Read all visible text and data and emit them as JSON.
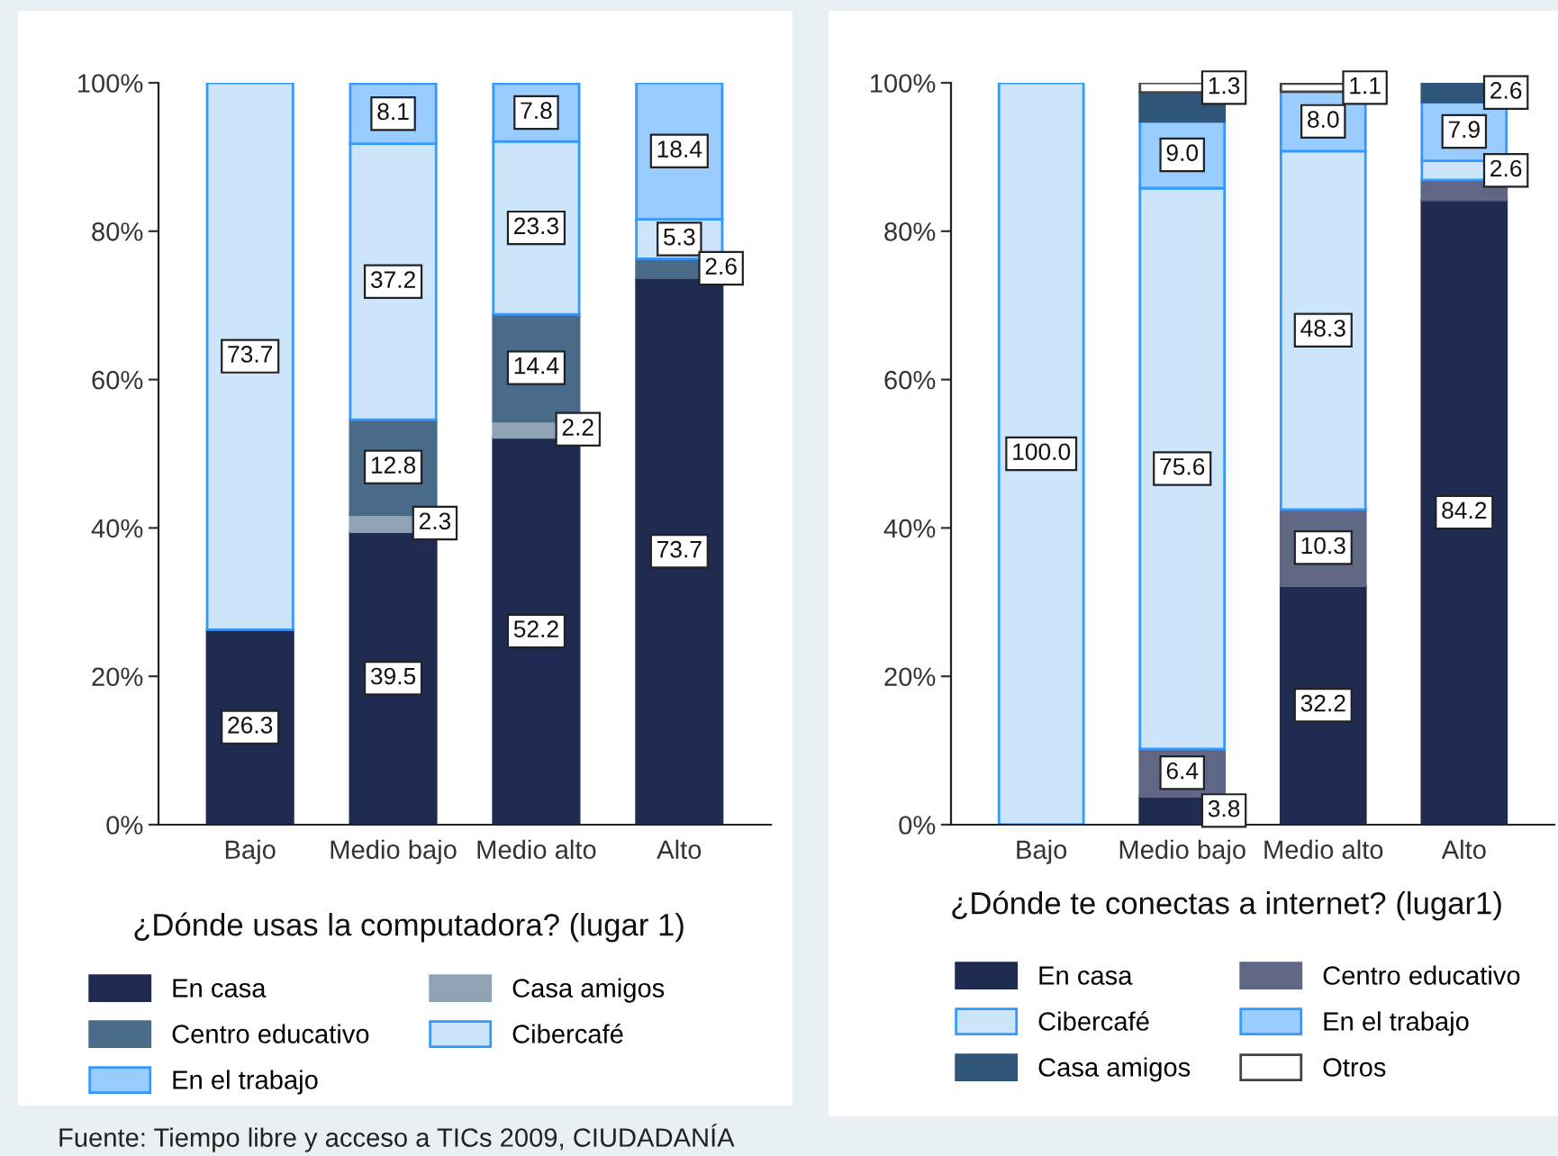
{
  "chart_data": [
    {
      "type": "bar",
      "stacked": true,
      "title": "¿Dónde usas la computadora? (lugar 1)",
      "categories": [
        "Bajo",
        "Medio bajo",
        "Medio alto",
        "Alto"
      ],
      "ylim": [
        0,
        100
      ],
      "yticks": [
        {
          "value": 0,
          "label": "0%"
        },
        {
          "value": 20,
          "label": "20%"
        },
        {
          "value": 40,
          "label": "40%"
        },
        {
          "value": 60,
          "label": "60%"
        },
        {
          "value": 80,
          "label": "80%"
        },
        {
          "value": 100,
          "label": "100%"
        }
      ],
      "legend": "bottom",
      "series": [
        {
          "name": "En casa",
          "color": "#1f2b50",
          "values": [
            26.3,
            39.5,
            52.2,
            73.7
          ],
          "value_labels": [
            "26.3",
            "39.5",
            "52.2",
            "73.7"
          ]
        },
        {
          "name": "Casa amigos",
          "color": "#8fa3b5",
          "values": [
            null,
            2.3,
            2.2,
            null
          ],
          "value_labels": [
            null,
            "2.3",
            "2.2",
            null
          ]
        },
        {
          "name": "Centro educativo",
          "color": "#4a6a8a",
          "values": [
            null,
            12.8,
            14.4,
            2.6
          ],
          "value_labels": [
            null,
            "12.8",
            "14.4",
            "2.6"
          ]
        },
        {
          "name": "Cibercafé",
          "color": "#cce5fb",
          "values": [
            73.7,
            37.2,
            23.3,
            5.3
          ],
          "value_labels": [
            "73.7",
            "37.2",
            "23.3",
            "5.3"
          ]
        },
        {
          "name": "En el trabajo",
          "color": "#99ccff",
          "values": [
            null,
            8.1,
            7.8,
            18.4
          ],
          "value_labels": [
            null,
            "8.1",
            "7.8",
            "18.4"
          ]
        }
      ],
      "annotations": [
        "Fuente: Tiempo libre y acceso a TICs 2009, CIUDADANÍA"
      ]
    },
    {
      "type": "bar",
      "stacked": true,
      "title": "¿Dónde te conectas a internet? (lugar1)",
      "categories": [
        "Bajo",
        "Medio bajo",
        "Medio alto",
        "Alto"
      ],
      "ylim": [
        0,
        100
      ],
      "yticks": [
        {
          "value": 0,
          "label": "0%"
        },
        {
          "value": 20,
          "label": "20%"
        },
        {
          "value": 40,
          "label": "40%"
        },
        {
          "value": 60,
          "label": "60%"
        },
        {
          "value": 80,
          "label": "80%"
        },
        {
          "value": 100,
          "label": "100%"
        }
      ],
      "legend": "bottom",
      "series": [
        {
          "name": "En casa",
          "color": "#1f2b50",
          "values": [
            null,
            3.8,
            32.2,
            84.2
          ],
          "value_labels": [
            null,
            "3.8",
            "32.2",
            "84.2"
          ]
        },
        {
          "name": "Centro educativo",
          "color": "#5f6785",
          "values": [
            null,
            6.4,
            10.3,
            2.7
          ],
          "value_labels": [
            null,
            "6.4",
            "10.3",
            null
          ]
        },
        {
          "name": "Cibercafé",
          "color": "#cce5fb",
          "values": [
            100.0,
            75.6,
            48.3,
            2.6
          ],
          "value_labels": [
            "100.0",
            "75.6",
            "48.3",
            "2.6"
          ]
        },
        {
          "name": "En el trabajo",
          "color": "#99ccff",
          "values": [
            null,
            9.0,
            8.0,
            7.9
          ],
          "value_labels": [
            null,
            "9.0",
            "8.0",
            "7.9"
          ]
        },
        {
          "name": "Casa amigos",
          "color": "#2f5578",
          "values": [
            null,
            3.9,
            null,
            2.6
          ],
          "value_labels": [
            null,
            null,
            null,
            "2.6"
          ]
        },
        {
          "name": "Otros",
          "color": "#ffffff",
          "values": [
            null,
            1.3,
            1.1,
            null
          ],
          "value_labels": [
            null,
            "1.3",
            "1.1",
            null
          ]
        }
      ]
    }
  ]
}
